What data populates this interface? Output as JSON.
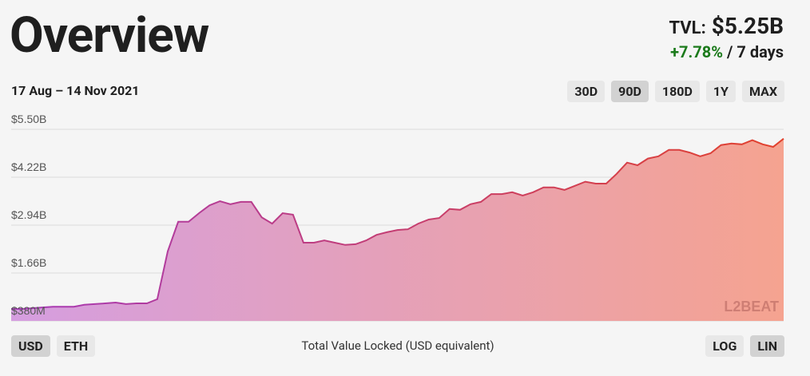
{
  "header": {
    "title": "Overview",
    "tvl_label": "TVL:",
    "tvl_value": "$5.25B",
    "change": "+7.78%",
    "change_period": "/ 7 days",
    "date_range": "17 Aug – 14 Nov 2021"
  },
  "range_buttons": [
    {
      "label": "30D",
      "active": false
    },
    {
      "label": "90D",
      "active": true
    },
    {
      "label": "180D",
      "active": false
    },
    {
      "label": "1Y",
      "active": false
    },
    {
      "label": "MAX",
      "active": false
    }
  ],
  "currency_buttons": [
    {
      "label": "USD",
      "active": true
    },
    {
      "label": "ETH",
      "active": false
    }
  ],
  "scale_buttons": [
    {
      "label": "LOG",
      "active": false
    },
    {
      "label": "LIN",
      "active": true
    }
  ],
  "chart_data": {
    "type": "area",
    "caption": "Total Value Locked (USD equivalent)",
    "watermark": "L2BEAT",
    "ylim": [
      0.38,
      5.5
    ],
    "yticks": [
      {
        "value": 0.38,
        "label": "$380M"
      },
      {
        "value": 1.66,
        "label": "$1.66B"
      },
      {
        "value": 2.94,
        "label": "$2.94B"
      },
      {
        "value": 4.22,
        "label": "$4.22B"
      },
      {
        "value": 5.5,
        "label": "$5.50B"
      }
    ],
    "grid": true,
    "values": [
      0.7,
      0.7,
      0.72,
      0.74,
      0.76,
      0.76,
      0.76,
      0.81,
      0.83,
      0.85,
      0.87,
      0.83,
      0.85,
      0.85,
      0.96,
      2.24,
      3.03,
      3.03,
      3.26,
      3.47,
      3.58,
      3.5,
      3.56,
      3.56,
      3.15,
      2.98,
      3.26,
      3.22,
      2.47,
      2.47,
      2.53,
      2.47,
      2.41,
      2.43,
      2.53,
      2.68,
      2.75,
      2.81,
      2.83,
      2.98,
      3.09,
      3.13,
      3.37,
      3.35,
      3.5,
      3.56,
      3.77,
      3.77,
      3.82,
      3.73,
      3.82,
      3.95,
      3.95,
      3.88,
      3.99,
      4.1,
      4.05,
      4.05,
      4.31,
      4.61,
      4.54,
      4.72,
      4.78,
      4.95,
      4.95,
      4.88,
      4.78,
      4.86,
      5.08,
      5.12,
      5.1,
      5.21,
      5.1,
      5.03,
      5.25
    ]
  }
}
